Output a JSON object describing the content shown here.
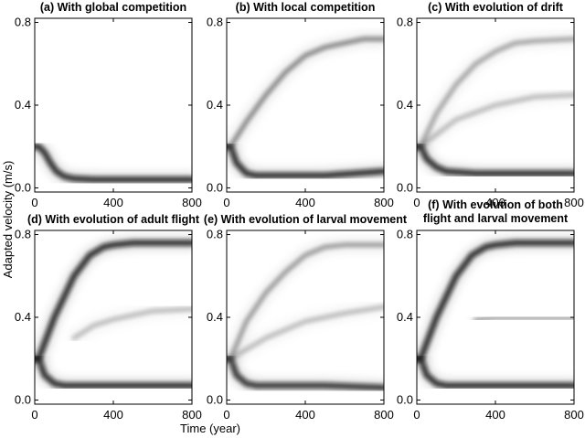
{
  "figure": {
    "ylabel": "Adapted velocity (m/s)",
    "xlabel": "Time (year)"
  },
  "chart_data": [
    {
      "type": "heatmap",
      "title": "(a) With global competition",
      "xlim": [
        0,
        800
      ],
      "ylim": [
        -0.02,
        0.82
      ],
      "xticks": [
        0,
        400,
        800
      ],
      "yticks": [
        0.0,
        0.4,
        0.8
      ],
      "density_tracks": [
        {
          "t": [
            0,
            20,
            50,
            80,
            110,
            150,
            200,
            300,
            500,
            800
          ],
          "v": [
            0.2,
            0.2,
            0.17,
            0.12,
            0.08,
            0.055,
            0.045,
            0.04,
            0.04,
            0.04
          ],
          "intensity": 0.95
        }
      ]
    },
    {
      "type": "heatmap",
      "title": "(b) With local competition",
      "xlim": [
        0,
        800
      ],
      "ylim": [
        -0.02,
        0.82
      ],
      "xticks": [
        0,
        400,
        800
      ],
      "yticks": [
        0.0,
        0.4,
        0.8
      ],
      "density_tracks": [
        {
          "t": [
            0,
            20,
            50,
            100,
            150,
            300,
            500,
            800
          ],
          "v": [
            0.2,
            0.2,
            0.12,
            0.07,
            0.06,
            0.06,
            0.06,
            0.08
          ],
          "intensity": 0.95
        },
        {
          "t": [
            0,
            20,
            100,
            200,
            300,
            400,
            500,
            600,
            700,
            800
          ],
          "v": [
            0.2,
            0.2,
            0.32,
            0.45,
            0.56,
            0.64,
            0.68,
            0.7,
            0.72,
            0.72
          ],
          "intensity": 0.55
        }
      ]
    },
    {
      "type": "heatmap",
      "title": "(c) With evolution of drift",
      "xlim": [
        0,
        800
      ],
      "ylim": [
        -0.02,
        0.82
      ],
      "xticks": [
        0,
        400,
        800
      ],
      "yticks": [
        0.0,
        0.4,
        0.8
      ],
      "density_tracks": [
        {
          "t": [
            0,
            20,
            50,
            100,
            150,
            300,
            500,
            800
          ],
          "v": [
            0.2,
            0.2,
            0.14,
            0.1,
            0.08,
            0.07,
            0.07,
            0.07
          ],
          "intensity": 0.95
        },
        {
          "t": [
            0,
            20,
            100,
            200,
            300,
            400,
            500,
            600,
            800
          ],
          "v": [
            0.2,
            0.2,
            0.36,
            0.5,
            0.6,
            0.66,
            0.7,
            0.71,
            0.72
          ],
          "intensity": 0.4
        },
        {
          "t": [
            0,
            20,
            200,
            400,
            600,
            800
          ],
          "v": [
            0.2,
            0.2,
            0.33,
            0.4,
            0.44,
            0.45
          ],
          "intensity": 0.3
        }
      ]
    },
    {
      "type": "heatmap",
      "title": "(d) With evolution of adult flight",
      "xlim": [
        0,
        800
      ],
      "ylim": [
        -0.02,
        0.82
      ],
      "xticks": [
        0,
        400,
        800
      ],
      "yticks": [
        0.0,
        0.4,
        0.8
      ],
      "density_tracks": [
        {
          "t": [
            0,
            20,
            50,
            100,
            150,
            300,
            500,
            800
          ],
          "v": [
            0.2,
            0.2,
            0.12,
            0.08,
            0.07,
            0.07,
            0.07,
            0.07
          ],
          "intensity": 0.95
        },
        {
          "t": [
            0,
            20,
            100,
            200,
            280,
            350,
            400,
            500,
            800
          ],
          "v": [
            0.2,
            0.2,
            0.4,
            0.6,
            0.7,
            0.74,
            0.75,
            0.76,
            0.76
          ],
          "intensity": 0.95
        },
        {
          "t": [
            200,
            300,
            400,
            500,
            600,
            800
          ],
          "v": [
            0.3,
            0.36,
            0.39,
            0.41,
            0.43,
            0.44
          ],
          "intensity": 0.3
        }
      ]
    },
    {
      "type": "heatmap",
      "title": "(e) With evolution of larval movement",
      "xlim": [
        0,
        800
      ],
      "ylim": [
        -0.02,
        0.82
      ],
      "xticks": [
        0,
        400,
        800
      ],
      "yticks": [
        0.0,
        0.4,
        0.8
      ],
      "density_tracks": [
        {
          "t": [
            0,
            20,
            50,
            100,
            150,
            300,
            500,
            800
          ],
          "v": [
            0.2,
            0.2,
            0.12,
            0.08,
            0.07,
            0.07,
            0.07,
            0.06
          ],
          "intensity": 0.9
        },
        {
          "t": [
            0,
            20,
            100,
            200,
            300,
            400,
            500,
            600,
            800
          ],
          "v": [
            0.2,
            0.2,
            0.38,
            0.52,
            0.62,
            0.7,
            0.74,
            0.75,
            0.75
          ],
          "intensity": 0.45
        },
        {
          "t": [
            0,
            20,
            200,
            400,
            600,
            800
          ],
          "v": [
            0.2,
            0.2,
            0.3,
            0.38,
            0.42,
            0.45
          ],
          "intensity": 0.3
        }
      ]
    },
    {
      "type": "heatmap",
      "title": "(f) With evolution of both\nflight and larval movement",
      "xlim": [
        0,
        800
      ],
      "ylim": [
        -0.02,
        0.82
      ],
      "xticks": [
        0,
        400,
        800
      ],
      "yticks": [
        0.0,
        0.4,
        0.8
      ],
      "density_tracks": [
        {
          "t": [
            0,
            20,
            50,
            100,
            150,
            300,
            500,
            800
          ],
          "v": [
            0.2,
            0.2,
            0.12,
            0.08,
            0.07,
            0.07,
            0.07,
            0.07
          ],
          "intensity": 0.95
        },
        {
          "t": [
            0,
            20,
            100,
            200,
            280,
            350,
            400,
            500,
            800
          ],
          "v": [
            0.2,
            0.2,
            0.4,
            0.6,
            0.7,
            0.74,
            0.75,
            0.76,
            0.76
          ],
          "intensity": 0.95
        },
        {
          "t": [
            300,
            400,
            500,
            600,
            800
          ],
          "v": [
            0.39,
            0.4,
            0.4,
            0.4,
            0.4
          ],
          "intensity": 0.4
        }
      ]
    }
  ]
}
